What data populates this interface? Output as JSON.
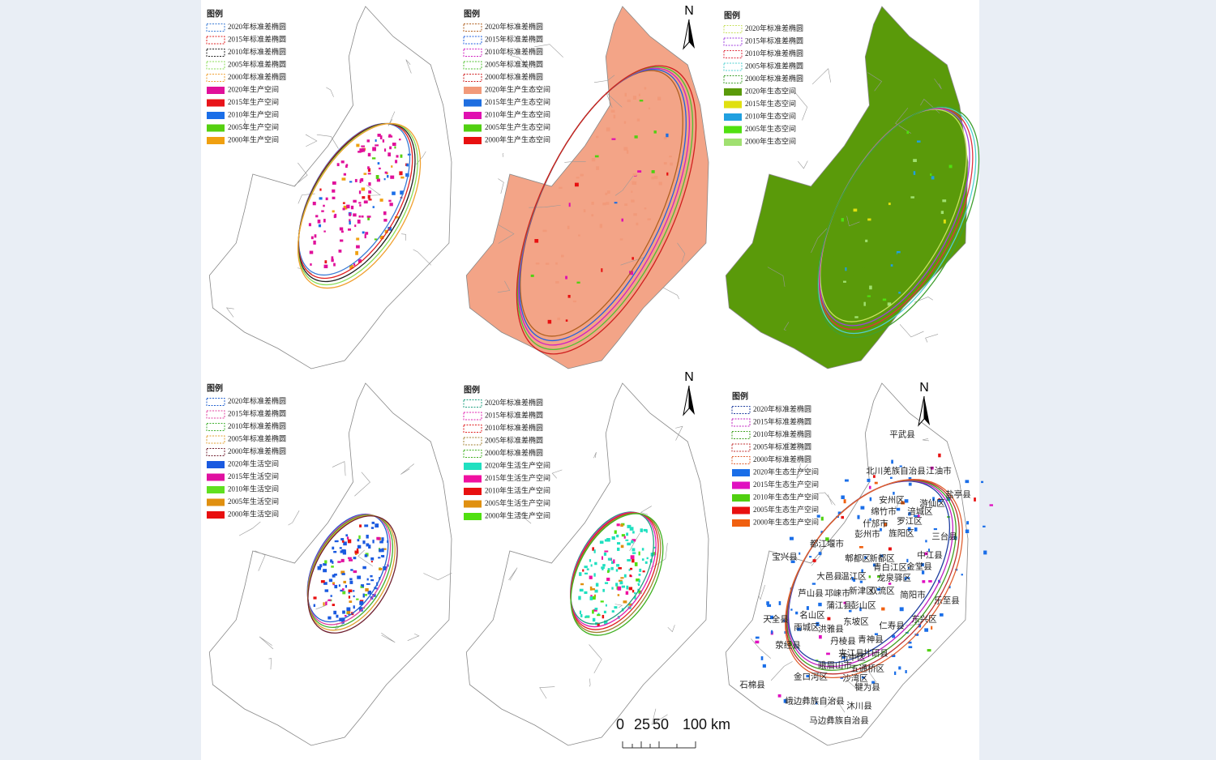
{
  "panels": [
    {
      "legend_title": "图例",
      "legend": [
        {
          "label": "2020年标准差椭圆",
          "color": "#3a7bd5",
          "style": "dashed"
        },
        {
          "label": "2015年标准差椭圆",
          "color": "#e02020",
          "style": "dashed"
        },
        {
          "label": "2010年标准差椭圆",
          "color": "#202020",
          "style": "dashed"
        },
        {
          "label": "2005年标准差椭圆",
          "color": "#88dd55",
          "style": "dashed"
        },
        {
          "label": "2000年标准差椭圆",
          "color": "#f0a030",
          "style": "dashed"
        },
        {
          "label": "2020年生产空间",
          "color": "#e0109a",
          "style": "solid"
        },
        {
          "label": "2015年生产空间",
          "color": "#e8141a",
          "style": "solid"
        },
        {
          "label": "2010年生产空间",
          "color": "#1a6ee8",
          "style": "solid"
        },
        {
          "label": "2005年生产空间",
          "color": "#55d010",
          "style": "solid"
        },
        {
          "label": "2000年生产空间",
          "color": "#f0a010",
          "style": "solid"
        }
      ]
    },
    {
      "legend_title": "图例",
      "north": "N",
      "legend": [
        {
          "label": "2020年标准差椭圆",
          "color": "#b06020",
          "style": "dashed"
        },
        {
          "label": "2015年标准差椭圆",
          "color": "#2060e0",
          "style": "dashed"
        },
        {
          "label": "2010年标准差椭圆",
          "color": "#d020c0",
          "style": "dashed"
        },
        {
          "label": "2005年标准差椭圆",
          "color": "#50c030",
          "style": "dashed"
        },
        {
          "label": "2000年标准差椭圆",
          "color": "#d02020",
          "style": "dashed"
        },
        {
          "label": "2020年生产生态空间",
          "color": "#f29a7a",
          "style": "solid"
        },
        {
          "label": "2015年生产生态空间",
          "color": "#1e6ee0",
          "style": "solid"
        },
        {
          "label": "2010年生产生态空间",
          "color": "#e010b0",
          "style": "solid"
        },
        {
          "label": "2005年生产生态空间",
          "color": "#50d010",
          "style": "solid"
        },
        {
          "label": "2000年生产生态空间",
          "color": "#e81010",
          "style": "solid"
        }
      ]
    },
    {
      "legend_title": "图例",
      "legend": [
        {
          "label": "2020年标准差椭圆",
          "color": "#c8e060",
          "style": "dashed"
        },
        {
          "label": "2015年标准差椭圆",
          "color": "#a040e0",
          "style": "dashed"
        },
        {
          "label": "2010年标准差椭圆",
          "color": "#e03040",
          "style": "dashed"
        },
        {
          "label": "2005年标准差椭圆",
          "color": "#50d0d0",
          "style": "dashed"
        },
        {
          "label": "2000年标准差椭圆",
          "color": "#40a030",
          "style": "dashed"
        },
        {
          "label": "2020年生态空间",
          "color": "#5a9a0a",
          "style": "solid"
        },
        {
          "label": "2015年生态空间",
          "color": "#e0e010",
          "style": "solid"
        },
        {
          "label": "2010年生态空间",
          "color": "#20a0e0",
          "style": "solid"
        },
        {
          "label": "2005年生态空间",
          "color": "#50e010",
          "style": "solid"
        },
        {
          "label": "2000年生态空间",
          "color": "#a0e070",
          "style": "solid"
        }
      ]
    },
    {
      "legend_title": "图例",
      "legend": [
        {
          "label": "2020年标准差椭圆",
          "color": "#2060d0",
          "style": "dashed"
        },
        {
          "label": "2015年标准差椭圆",
          "color": "#e040a0",
          "style": "dashed"
        },
        {
          "label": "2010年标准差椭圆",
          "color": "#40b030",
          "style": "dashed"
        },
        {
          "label": "2005年标准差椭圆",
          "color": "#e0a030",
          "style": "dashed"
        },
        {
          "label": "2000年标准差椭圆",
          "color": "#702030",
          "style": "dashed"
        },
        {
          "label": "2020年生活空间",
          "color": "#1a5ae0",
          "style": "solid"
        },
        {
          "label": "2015年生活空间",
          "color": "#e010a0",
          "style": "solid"
        },
        {
          "label": "2010年生活空间",
          "color": "#60e020",
          "style": "solid"
        },
        {
          "label": "2005年生活空间",
          "color": "#e09010",
          "style": "solid"
        },
        {
          "label": "2000年生活空间",
          "color": "#e81010",
          "style": "solid"
        }
      ]
    },
    {
      "legend_title": "图例",
      "north": "N",
      "legend": [
        {
          "label": "2020年标准差椭圆",
          "color": "#20a080",
          "style": "dashed"
        },
        {
          "label": "2015年标准差椭圆",
          "color": "#e020b0",
          "style": "dashed"
        },
        {
          "label": "2010年标准差椭圆",
          "color": "#e02020",
          "style": "dashed"
        },
        {
          "label": "2005年标准差椭圆",
          "color": "#a08030",
          "style": "dashed"
        },
        {
          "label": "2000年标准差椭圆",
          "color": "#40b020",
          "style": "dashed"
        },
        {
          "label": "2020年生活生产空间",
          "color": "#20e0c0",
          "style": "solid"
        },
        {
          "label": "2015年生活生产空间",
          "color": "#f010a0",
          "style": "solid"
        },
        {
          "label": "2010年生活生产空间",
          "color": "#e81010",
          "style": "solid"
        },
        {
          "label": "2005年生活生产空间",
          "color": "#e09010",
          "style": "solid"
        },
        {
          "label": "2000年生活生产空间",
          "color": "#50e010",
          "style": "solid"
        }
      ]
    },
    {
      "legend_title": "图例",
      "north": "N",
      "legend": [
        {
          "label": "2020年标准差椭圆",
          "color": "#2040a0",
          "style": "dashed"
        },
        {
          "label": "2015年标准差椭圆",
          "color": "#c020c0",
          "style": "dashed"
        },
        {
          "label": "2010年标准差椭圆",
          "color": "#40a020",
          "style": "dashed"
        },
        {
          "label": "2005年标准差椭圆",
          "color": "#c03030",
          "style": "dashed"
        },
        {
          "label": "2000年标准差椭圆",
          "color": "#e06030",
          "style": "dashed"
        },
        {
          "label": "2020年生态生产空间",
          "color": "#1a6ee8",
          "style": "solid"
        },
        {
          "label": "2015年生态生产空间",
          "color": "#e010c0",
          "style": "solid"
        },
        {
          "label": "2010年生态生产空间",
          "color": "#50d010",
          "style": "solid"
        },
        {
          "label": "2005年生态生产空间",
          "color": "#e81010",
          "style": "solid"
        },
        {
          "label": "2000年生态生产空间",
          "color": "#f06010",
          "style": "solid"
        }
      ],
      "places": [
        "平武县",
        "北川羌族自治县",
        "江油市",
        "安州区",
        "游仙区",
        "绵竹市",
        "涪城区",
        "盐亭县",
        "什邡市",
        "罗江区",
        "彭州市",
        "旌阳区",
        "三台县",
        "都江堰市",
        "中江县",
        "郫都区",
        "新都区",
        "宝兴县",
        "大邑县",
        "温江区",
        "青白江区",
        "金堂县",
        "龙泉驿区",
        "芦山县",
        "邛崃市",
        "新津区",
        "双流区",
        "简阳市",
        "乐至县",
        "蒲江县",
        "彭山区",
        "天全县",
        "名山区",
        "东坡区",
        "仁寿县",
        "东兴区",
        "雨城区",
        "洪雅县",
        "丹棱县",
        "青神县",
        "荥经县",
        "井研县",
        "夹江县",
        "峨眉山市",
        "市中区",
        "五通桥区",
        "沙湾区",
        "金口河区",
        "犍为县",
        "石棉县",
        "峨边彝族自治县",
        "沐川县",
        "马边彝族自治县"
      ]
    }
  ],
  "scale_bar": {
    "labels": [
      "0",
      "25",
      "50",
      "100 km"
    ]
  }
}
